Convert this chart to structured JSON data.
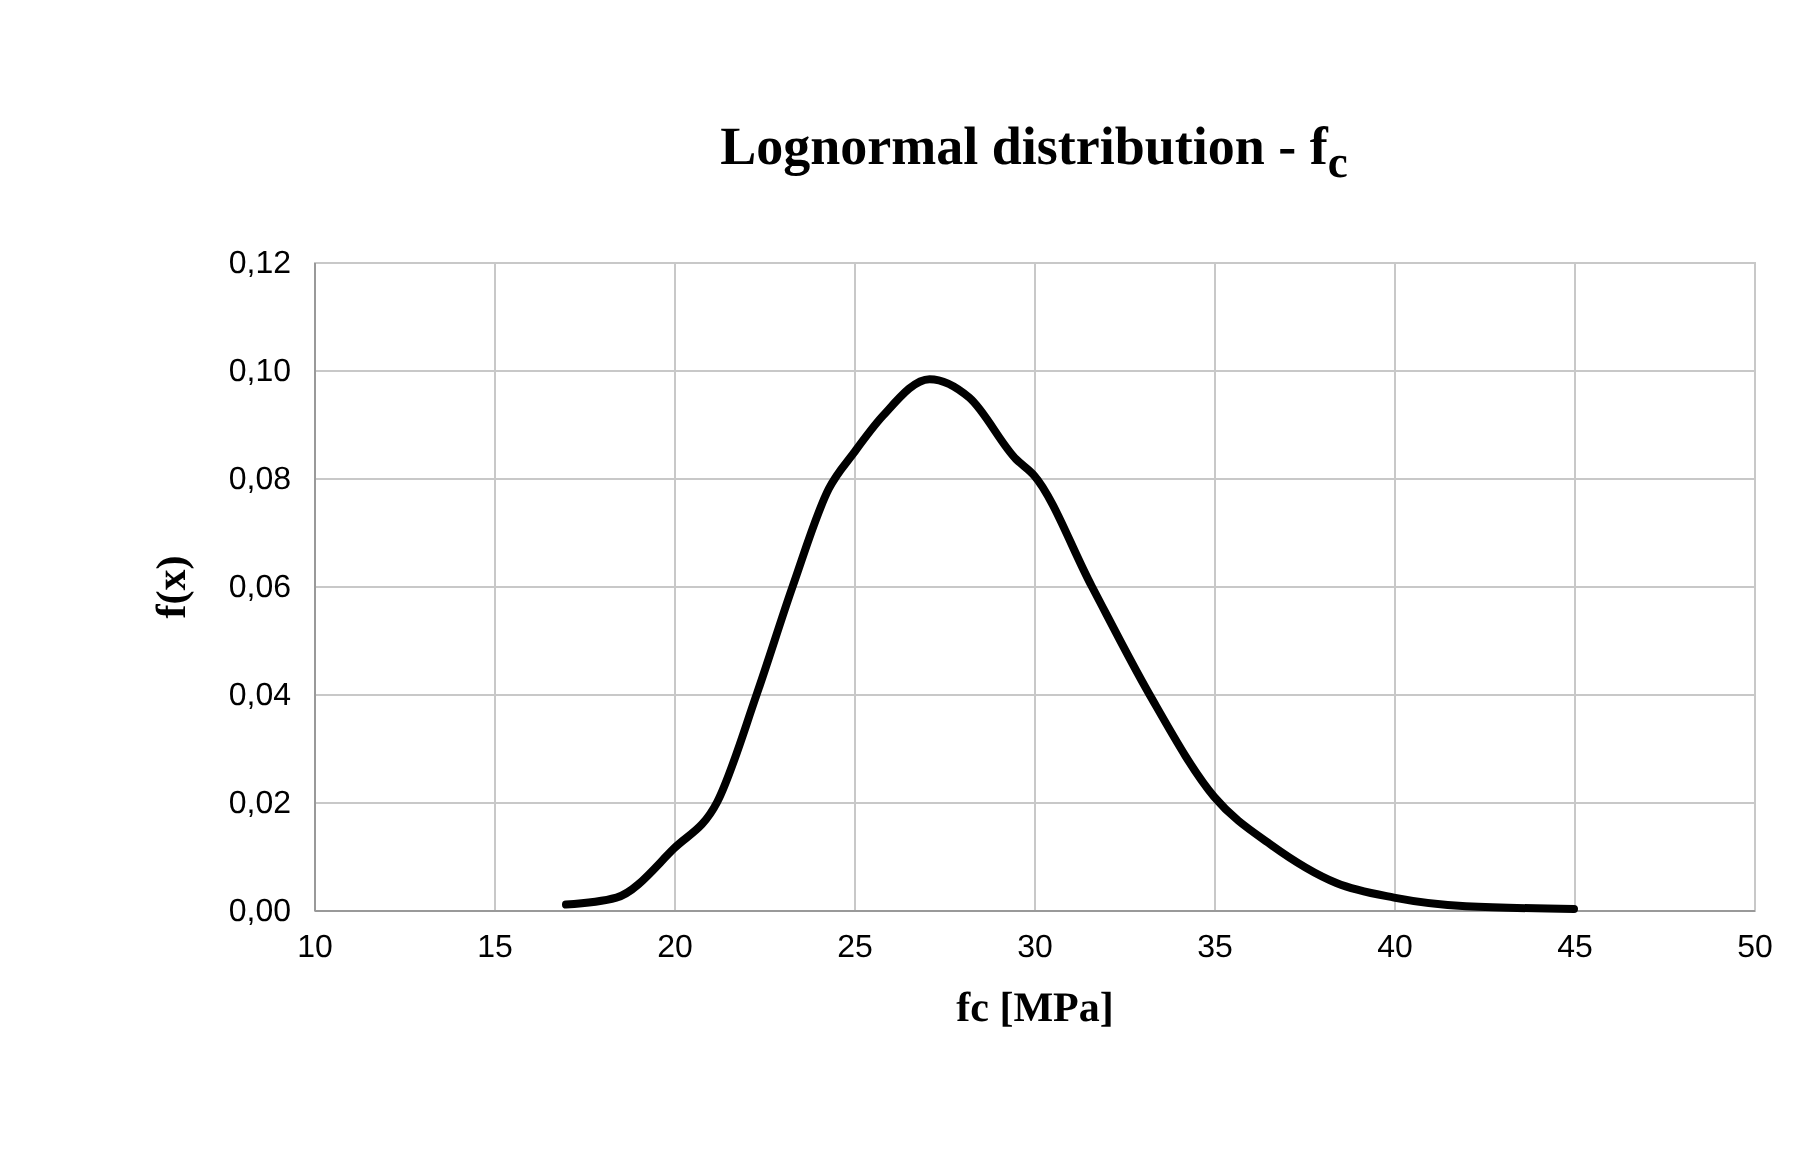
{
  "chart_data": {
    "type": "line",
    "title": "Lognormal distribution - f$_{c}$",
    "xlabel": "fc [MPa]",
    "ylabel": "f(x)",
    "series": [
      {
        "color": "#000000",
        "x": [
          17,
          18.4,
          20,
          21.2,
          22.3,
          23.3,
          24.3,
          25,
          25.8,
          27.1,
          28.2,
          29.5,
          30,
          31.6,
          33.2,
          35,
          36.6,
          38.4,
          40,
          42,
          45
        ],
        "values": [
          0.001,
          0.0023,
          0.0114,
          0.02,
          0.04,
          0.06,
          0.078,
          0.0847,
          0.0915,
          0.0983,
          0.0949,
          0.0835,
          0.0805,
          0.06,
          0.04,
          0.021,
          0.012,
          0.005,
          0.0023,
          0.0007,
          0.0002
        ]
      }
    ],
    "xlim": [
      10,
      50
    ],
    "xticks": [
      10,
      15,
      20,
      25,
      30,
      35,
      40,
      45,
      50
    ],
    "ylim": [
      0,
      0.12
    ],
    "yticks": [
      {
        "value": 0,
        "label": "0,00"
      },
      {
        "value": 0.02,
        "label": "0,02"
      },
      {
        "value": 0.04,
        "label": "0,04"
      },
      {
        "value": 0.06,
        "label": "0,06"
      },
      {
        "value": 0.08,
        "label": "0,08"
      },
      {
        "value": 0.1,
        "label": "0,10"
      },
      {
        "value": 0.12,
        "label": "0,12"
      }
    ],
    "grid": true,
    "marker": "none",
    "line_style": "solid"
  }
}
